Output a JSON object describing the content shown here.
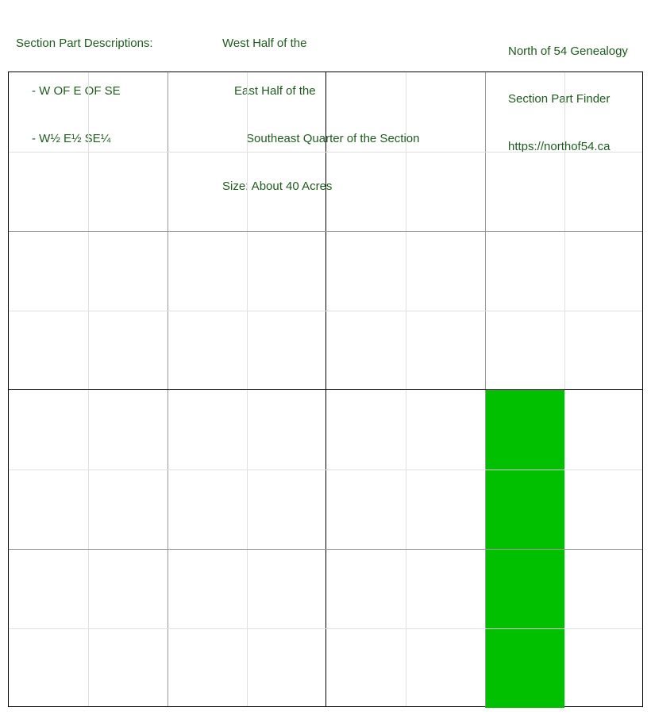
{
  "descriptions": {
    "heading": "Section Part Descriptions:",
    "items": [
      "- W OF E OF SE",
      "- W½ E½ SE¼"
    ]
  },
  "legal": {
    "line1": "West Half of the",
    "line2": "East Half of the",
    "line3": "Southeast Quarter of the Section",
    "size": "Size: About 40 Acres"
  },
  "brand": {
    "name": "North of 54 Genealogy",
    "tool": "Section Part Finder",
    "url": "https://northof54.ca"
  },
  "map": {
    "grid": "8 x 8",
    "highlight_color": "#00c000",
    "highlight": "west half of the east half of the southeast quarter"
  }
}
